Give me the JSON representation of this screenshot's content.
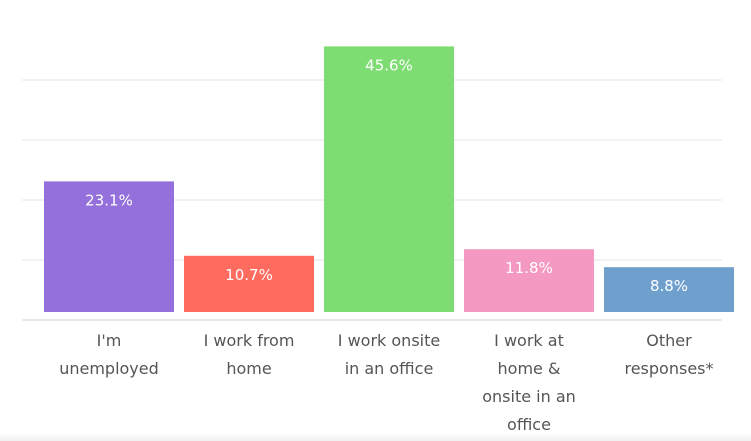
{
  "chart_data": {
    "type": "bar",
    "categories": [
      "I'm unemployed",
      "I work from home",
      "I work onsite in an office",
      "I work at home & onsite in an office",
      "Other responses*"
    ],
    "category_lines": [
      [
        "I'm",
        "unemployed"
      ],
      [
        "I work from",
        "home"
      ],
      [
        "I work onsite",
        "in an office"
      ],
      [
        "I work at",
        "home &",
        "onsite in an",
        "office"
      ],
      [
        "Other",
        "responses*"
      ]
    ],
    "values": [
      23.1,
      10.7,
      45.6,
      11.8,
      8.8
    ],
    "data_labels": [
      "23.1%",
      "10.7%",
      "45.6%",
      "11.8%",
      "8.8%"
    ],
    "colors": [
      "#9370DB",
      "#FF6B5F",
      "#7EDD72",
      "#F49AC2",
      "#6E9FCD"
    ],
    "ylim": [
      0,
      50
    ],
    "grid": true,
    "title": "",
    "xlabel": "",
    "ylabel": ""
  }
}
